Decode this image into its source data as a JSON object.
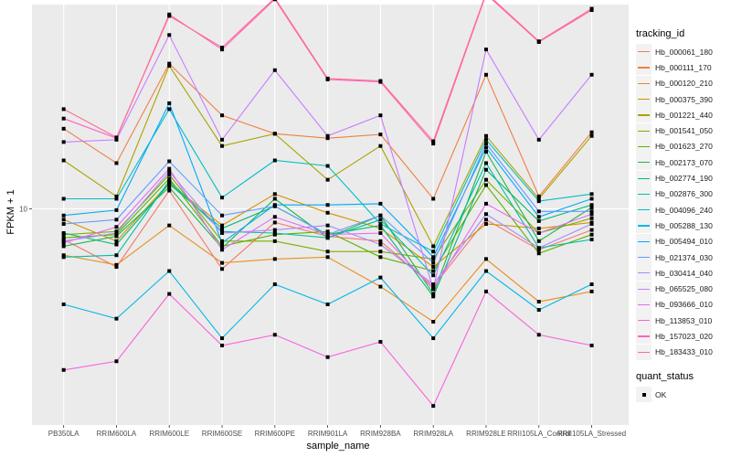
{
  "chart_data": {
    "type": "line",
    "title": "",
    "xlabel": "sample_name",
    "ylabel": "FPKM + 1",
    "y_scale": "log10",
    "ylim": [
      1.9,
      48
    ],
    "y_ticks": [
      10
    ],
    "y_tick_labels": [
      "10"
    ],
    "grid": true,
    "legend_placement": "right",
    "categories": [
      "PB350LA",
      "RRIM600LA",
      "RRIM600LE",
      "RRIM600SE",
      "RRIM600PE",
      "RRIM901LA",
      "RRIM928BA",
      "RRIM928LA",
      "RRIM928LE",
      "RRII105LA_Control",
      "RRII105LA_Stressed"
    ],
    "legend": {
      "tracking_title": "tracking_id",
      "status_title": "quant_status",
      "status_items": [
        {
          "label": "OK",
          "shape": "square"
        }
      ]
    },
    "series": [
      {
        "name": "Hb_000061_180",
        "color": "#F8766D",
        "values": [
          7.9,
          6.4,
          11.5,
          6.3,
          9.0,
          8.1,
          7.8,
          5.5,
          9.2,
          7.3,
          8.5
        ]
      },
      {
        "name": "Hb_000111_170",
        "color": "#EE8042",
        "values": [
          18.5,
          14.2,
          30.5,
          20.5,
          17.8,
          17.2,
          17.7,
          10.8,
          28.0,
          11.0,
          18.0
        ]
      },
      {
        "name": "Hb_000120_210",
        "color": "#E7901F",
        "values": [
          7.0,
          6.5,
          8.8,
          6.6,
          6.8,
          6.9,
          5.5,
          4.2,
          6.8,
          4.9,
          5.3
        ]
      },
      {
        "name": "Hb_000375_390",
        "color": "#D39200",
        "values": [
          9.2,
          7.8,
          12.2,
          8.8,
          11.2,
          9.7,
          8.6,
          6.4,
          8.9,
          8.6,
          9.0
        ]
      },
      {
        "name": "Hb_001221_440",
        "color": "#A9A400",
        "values": [
          14.5,
          11.0,
          30.0,
          16.2,
          17.8,
          12.5,
          16.2,
          7.5,
          17.5,
          10.8,
          17.5
        ]
      },
      {
        "name": "Hb_001541_050",
        "color": "#7CAE00",
        "values": [
          8.2,
          8.4,
          13.0,
          7.8,
          7.8,
          7.2,
          7.2,
          6.8,
          12.5,
          8.3,
          9.3
        ]
      },
      {
        "name": "Hb_001623_270",
        "color": "#5BB300",
        "values": [
          8.0,
          8.2,
          12.6,
          7.5,
          8.2,
          8.4,
          6.9,
          6.2,
          12.0,
          7.1,
          8.2
        ]
      },
      {
        "name": "Hb_002173_070",
        "color": "#1FB54A",
        "values": [
          7.5,
          8.1,
          11.8,
          7.4,
          10.8,
          8.0,
          9.5,
          5.2,
          15.5,
          7.8,
          10.1
        ]
      },
      {
        "name": "Hb_002774_190",
        "color": "#00BA74",
        "values": [
          8.3,
          7.6,
          12.1,
          8.6,
          10.2,
          8.2,
          8.8,
          5.1,
          13.5,
          9.1,
          10.3
        ]
      },
      {
        "name": "Hb_002876_300",
        "color": "#00BFA4",
        "values": [
          6.9,
          7.0,
          12.4,
          8.4,
          8.3,
          8.0,
          9.2,
          6.0,
          14.2,
          7.4,
          7.9
        ]
      },
      {
        "name": "Hb_004096_240",
        "color": "#00BFC4",
        "values": [
          10.8,
          10.8,
          21.5,
          10.9,
          14.5,
          13.9,
          8.9,
          7.2,
          17.0,
          10.6,
          11.2
        ]
      },
      {
        "name": "Hb_005288_130",
        "color": "#00B8E7",
        "values": [
          4.8,
          4.3,
          6.2,
          3.7,
          5.6,
          4.8,
          5.9,
          3.7,
          6.2,
          4.6,
          5.6
        ]
      },
      {
        "name": "Hb_005494_010",
        "color": "#00A9FF",
        "values": [
          9.5,
          9.9,
          22.5,
          7.7,
          10.3,
          10.3,
          10.4,
          6.9,
          16.0,
          9.4,
          10.8
        ]
      },
      {
        "name": "Hb_021374_030",
        "color": "#619CFF",
        "values": [
          8.9,
          9.2,
          14.4,
          9.5,
          10.2,
          8.2,
          9.5,
          6.6,
          16.5,
          9.8,
          9.8
        ]
      },
      {
        "name": "Hb_030414_040",
        "color": "#A58AFF",
        "values": [
          7.8,
          8.3,
          13.3,
          8.3,
          8.5,
          8.8,
          7.6,
          5.6,
          9.6,
          7.4,
          8.9
        ]
      },
      {
        "name": "Hb_065525_080",
        "color": "#C77CFF",
        "values": [
          16.7,
          17.0,
          38.0,
          17.0,
          29.0,
          17.5,
          20.5,
          5.4,
          34.0,
          17.0,
          28.0
        ]
      },
      {
        "name": "Hb_093666_010",
        "color": "#E76BF3",
        "values": [
          7.7,
          8.7,
          13.6,
          7.3,
          9.4,
          8.2,
          8.3,
          5.4,
          10.4,
          8.3,
          9.6
        ]
      },
      {
        "name": "Hb_113853_010",
        "color": "#FA62DB",
        "values": [
          2.9,
          3.1,
          5.2,
          3.5,
          3.8,
          3.2,
          3.6,
          2.2,
          5.3,
          3.8,
          3.5
        ]
      },
      {
        "name": "Hb_157023_020",
        "color": "#FF62BC",
        "values": [
          20.0,
          17.2,
          44.5,
          34.0,
          50.0,
          27.0,
          26.5,
          16.5,
          52.0,
          36.0,
          46.0
        ]
      },
      {
        "name": "Hb_183433_010",
        "color": "#FF6C91",
        "values": [
          21.5,
          17.3,
          44.0,
          34.5,
          50.5,
          27.2,
          26.7,
          16.8,
          52.5,
          36.2,
          46.5
        ]
      }
    ]
  }
}
